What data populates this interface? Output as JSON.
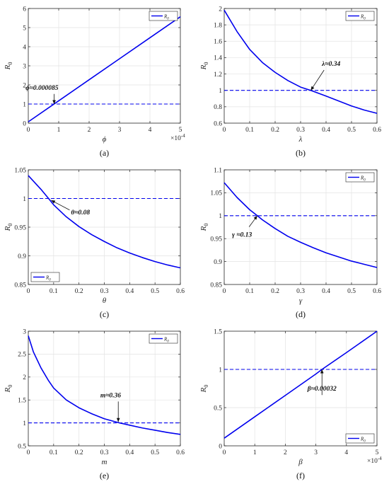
{
  "chart_data": [
    {
      "id": "a",
      "type": "line",
      "caption": "(a)",
      "xlabel": "ϕ",
      "ylabel_main": "R",
      "ylabel_sub": "0",
      "xlim": [
        0,
        5
      ],
      "ylim": [
        0,
        6
      ],
      "xticks": [
        0,
        1,
        2,
        3,
        4,
        5
      ],
      "xtick_labels": [
        "0",
        "1",
        "2",
        "3",
        "4",
        "5"
      ],
      "yticks": [
        0,
        1,
        2,
        3,
        4,
        5,
        6
      ],
      "ytick_labels": [
        "0",
        "1",
        "2",
        "3",
        "4",
        "5",
        "6"
      ],
      "x_exponent_base": "×10",
      "x_exponent_power": "-4",
      "legend_main": "R",
      "legend_sub": "0",
      "legend_position": "top-right",
      "threshold": 1,
      "series": [
        {
          "values": [
            [
              0,
              0.07
            ],
            [
              1,
              1.17
            ],
            [
              2,
              2.27
            ],
            [
              3,
              3.37
            ],
            [
              4,
              4.47
            ],
            [
              5,
              5.57
            ]
          ]
        }
      ],
      "annotation": {
        "text": "ϕ≈0.000085",
        "label_x": 0.45,
        "label_y": 1.75,
        "target_x": 0.85,
        "target_y": 1
      }
    },
    {
      "id": "b",
      "type": "line",
      "caption": "(b)",
      "xlabel": "λ",
      "ylabel_main": "R",
      "ylabel_sub": "0",
      "xlim": [
        0,
        0.6
      ],
      "ylim": [
        0.6,
        2
      ],
      "xticks": [
        0,
        0.1,
        0.2,
        0.3,
        0.4,
        0.5,
        0.6
      ],
      "xtick_labels": [
        "0",
        "0.1",
        "0.2",
        "0.3",
        "0.4",
        "0.5",
        "0.6"
      ],
      "yticks": [
        0.6,
        0.8,
        1,
        1.2,
        1.4,
        1.6,
        1.8,
        2
      ],
      "ytick_labels": [
        "0.6",
        "0.8",
        "1",
        "1.2",
        "1.4",
        "1.6",
        "1.8",
        "2"
      ],
      "legend_main": "R",
      "legend_sub": "0",
      "legend_position": "top-right",
      "threshold": 1,
      "series": [
        {
          "values": [
            [
              0,
              1.98
            ],
            [
              0.05,
              1.72
            ],
            [
              0.1,
              1.5
            ],
            [
              0.15,
              1.34
            ],
            [
              0.2,
              1.22
            ],
            [
              0.25,
              1.12
            ],
            [
              0.3,
              1.04
            ],
            [
              0.34,
              1.0
            ],
            [
              0.4,
              0.93
            ],
            [
              0.45,
              0.87
            ],
            [
              0.5,
              0.81
            ],
            [
              0.55,
              0.76
            ],
            [
              0.6,
              0.72
            ]
          ]
        }
      ],
      "annotation": {
        "text": "λ≈0.34",
        "label_x": 0.42,
        "label_y": 1.3,
        "target_x": 0.34,
        "target_y": 1
      }
    },
    {
      "id": "c",
      "type": "line",
      "caption": "(c)",
      "xlabel": "θ",
      "ylabel_main": "R",
      "ylabel_sub": "0",
      "xlim": [
        0,
        0.6
      ],
      "ylim": [
        0.85,
        1.05
      ],
      "xticks": [
        0,
        0.1,
        0.2,
        0.3,
        0.4,
        0.5,
        0.6
      ],
      "xtick_labels": [
        "0",
        "0.1",
        "0.2",
        "0.3",
        "0.4",
        "0.5",
        "0.6"
      ],
      "yticks": [
        0.85,
        0.9,
        0.95,
        1,
        1.05
      ],
      "ytick_labels": [
        "0.85",
        "0.9",
        "0.95",
        "1",
        "1.05"
      ],
      "legend_main": "R",
      "legend_sub": "0",
      "legend_position": "bottom-left",
      "threshold": 1,
      "series": [
        {
          "values": [
            [
              0,
              1.04
            ],
            [
              0.05,
              1.016
            ],
            [
              0.08,
              1.0
            ],
            [
              0.1,
              0.989
            ],
            [
              0.15,
              0.968
            ],
            [
              0.2,
              0.951
            ],
            [
              0.25,
              0.937
            ],
            [
              0.3,
              0.925
            ],
            [
              0.35,
              0.914
            ],
            [
              0.4,
              0.905
            ],
            [
              0.45,
              0.897
            ],
            [
              0.5,
              0.89
            ],
            [
              0.55,
              0.884
            ],
            [
              0.6,
              0.879
            ]
          ]
        }
      ],
      "annotation": {
        "text": "θ≈0.08",
        "label_x": 0.23,
        "label_y": 0.975,
        "target_x": 0.09,
        "target_y": 0.997
      }
    },
    {
      "id": "d",
      "type": "line",
      "caption": "(d)",
      "xlabel": "γ",
      "ylabel_main": "R",
      "ylabel_sub": "0",
      "xlim": [
        0,
        0.6
      ],
      "ylim": [
        0.85,
        1.1
      ],
      "xticks": [
        0,
        0.1,
        0.2,
        0.3,
        0.4,
        0.5,
        0.6
      ],
      "xtick_labels": [
        "0",
        "0.1",
        "0.2",
        "0.3",
        "0.4",
        "0.5",
        "0.6"
      ],
      "yticks": [
        0.85,
        0.9,
        0.95,
        1,
        1.05,
        1.1
      ],
      "ytick_labels": [
        "0.85",
        "0.9",
        "0.95",
        "1",
        "1.05",
        "1.1"
      ],
      "legend_main": "R",
      "legend_sub": "0",
      "legend_position": "top-right",
      "threshold": 1,
      "series": [
        {
          "values": [
            [
              0,
              1.072
            ],
            [
              0.05,
              1.04
            ],
            [
              0.1,
              1.013
            ],
            [
              0.13,
              1.0
            ],
            [
              0.15,
              0.991
            ],
            [
              0.2,
              0.972
            ],
            [
              0.25,
              0.955
            ],
            [
              0.3,
              0.942
            ],
            [
              0.35,
              0.93
            ],
            [
              0.4,
              0.919
            ],
            [
              0.45,
              0.91
            ],
            [
              0.5,
              0.901
            ],
            [
              0.55,
              0.894
            ],
            [
              0.6,
              0.887
            ]
          ]
        }
      ],
      "annotation": {
        "text": "γ ≈0.13",
        "label_x": 0.07,
        "label_y": 0.954,
        "target_x": 0.13,
        "target_y": 1.0
      }
    },
    {
      "id": "e",
      "type": "line",
      "caption": "(e)",
      "xlabel": "m",
      "ylabel_main": "R",
      "ylabel_sub": "0",
      "xlim": [
        0,
        0.6
      ],
      "ylim": [
        0.5,
        3
      ],
      "xticks": [
        0,
        0.1,
        0.2,
        0.3,
        0.4,
        0.5,
        0.6
      ],
      "xtick_labels": [
        "0",
        "0.1",
        "0.2",
        "0.3",
        "0.4",
        "0.5",
        "0.6"
      ],
      "yticks": [
        0.5,
        1,
        1.5,
        2,
        2.5,
        3
      ],
      "ytick_labels": [
        "0.5",
        "1",
        "1.5",
        "2",
        "2.5",
        "3"
      ],
      "legend_main": "R",
      "legend_sub": "0",
      "legend_position": "top-right",
      "threshold": 1,
      "series": [
        {
          "values": [
            [
              0,
              2.9
            ],
            [
              0.02,
              2.55
            ],
            [
              0.05,
              2.2
            ],
            [
              0.08,
              1.92
            ],
            [
              0.1,
              1.76
            ],
            [
              0.15,
              1.5
            ],
            [
              0.2,
              1.33
            ],
            [
              0.25,
              1.2
            ],
            [
              0.3,
              1.09
            ],
            [
              0.36,
              1.0
            ],
            [
              0.4,
              0.95
            ],
            [
              0.45,
              0.89
            ],
            [
              0.5,
              0.84
            ],
            [
              0.55,
              0.79
            ],
            [
              0.6,
              0.75
            ]
          ]
        }
      ],
      "annotation": {
        "text": "m≈0.36",
        "label_x": 0.325,
        "label_y": 1.56,
        "target_x": 0.355,
        "target_y": 1.02
      }
    },
    {
      "id": "f",
      "type": "line",
      "caption": "(f)",
      "xlabel": "β",
      "ylabel_main": "R",
      "ylabel_sub": "0",
      "xlim": [
        0,
        5
      ],
      "ylim": [
        0,
        1.5
      ],
      "xticks": [
        0,
        1,
        2,
        3,
        4,
        5
      ],
      "xtick_labels": [
        "0",
        "1",
        "2",
        "3",
        "4",
        "5"
      ],
      "yticks": [
        0,
        0.5,
        1,
        1.5
      ],
      "ytick_labels": [
        "0",
        "0.5",
        "1",
        "1.5"
      ],
      "x_exponent_base": "×10",
      "x_exponent_power": "-4",
      "legend_main": "R",
      "legend_sub": "0",
      "legend_position": "bottom-right",
      "threshold": 1,
      "series": [
        {
          "values": [
            [
              0,
              0.1
            ],
            [
              1,
              0.38
            ],
            [
              2,
              0.66
            ],
            [
              3,
              0.94
            ],
            [
              3.2,
              1.0
            ],
            [
              4,
              1.22
            ],
            [
              5,
              1.5
            ]
          ]
        }
      ],
      "annotation": {
        "text": "β≈0.00032",
        "label_x": 3.2,
        "label_y": 0.72,
        "target_x": 3.2,
        "target_y": 1.0
      }
    }
  ]
}
